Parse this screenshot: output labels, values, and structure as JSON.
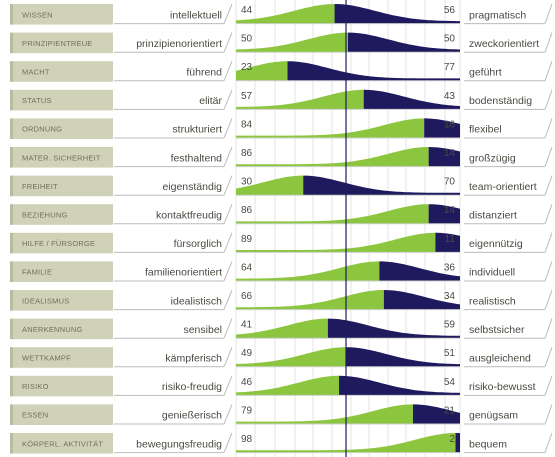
{
  "chart_data": {
    "type": "bar",
    "colors": {
      "left": "#8cc63f",
      "right": "#1f1a5e",
      "category_tab": "#d0d2b8"
    },
    "rows": [
      {
        "category": "WISSEN",
        "left_label": "intellektuell",
        "left": 44,
        "right": 56,
        "right_label": "pragmatisch"
      },
      {
        "category": "PRINZIPIENTREUE",
        "left_label": "prinzipienorientiert",
        "left": 50,
        "right": 50,
        "right_label": "zweckorientiert"
      },
      {
        "category": "MACHT",
        "left_label": "führend",
        "left": 23,
        "right": 77,
        "right_label": "geführt"
      },
      {
        "category": "STATUS",
        "left_label": "elitär",
        "left": 57,
        "right": 43,
        "right_label": "bodenständig"
      },
      {
        "category": "ORDNUNG",
        "left_label": "strukturiert",
        "left": 84,
        "right": 16,
        "right_label": "flexibel"
      },
      {
        "category": "MATER. SICHERHEIT",
        "left_label": "festhaltend",
        "left": 86,
        "right": 14,
        "right_label": "großzügig"
      },
      {
        "category": "FREIHEIT",
        "left_label": "eigenständig",
        "left": 30,
        "right": 70,
        "right_label": "team-orientiert"
      },
      {
        "category": "BEZIEHUNG",
        "left_label": "kontaktfreudig",
        "left": 86,
        "right": 14,
        "right_label": "distanziert"
      },
      {
        "category": "HILFE / FÜRSORGE",
        "left_label": "fürsorglich",
        "left": 89,
        "right": 11,
        "right_label": "eigennützig"
      },
      {
        "category": "FAMILIE",
        "left_label": "familienorientiert",
        "left": 64,
        "right": 36,
        "right_label": "individuell"
      },
      {
        "category": "IDEALISMUS",
        "left_label": "idealistisch",
        "left": 66,
        "right": 34,
        "right_label": "realistisch"
      },
      {
        "category": "ANERKENNUNG",
        "left_label": "sensibel",
        "left": 41,
        "right": 59,
        "right_label": "selbstsicher"
      },
      {
        "category": "WETTKAMPF",
        "left_label": "kämpferisch",
        "left": 49,
        "right": 51,
        "right_label": "ausgleichend"
      },
      {
        "category": "RISIKO",
        "left_label": "risiko-freudig",
        "left": 46,
        "right": 54,
        "right_label": "risiko-bewusst"
      },
      {
        "category": "ESSEN",
        "left_label": "genießerisch",
        "left": 79,
        "right": 21,
        "right_label": "genügsam"
      },
      {
        "category": "KÖRPERL. AKTIVITÄT",
        "left_label": "bewegungsfreudig",
        "left": 98,
        "right": 2,
        "right_label": "bequem"
      }
    ]
  }
}
